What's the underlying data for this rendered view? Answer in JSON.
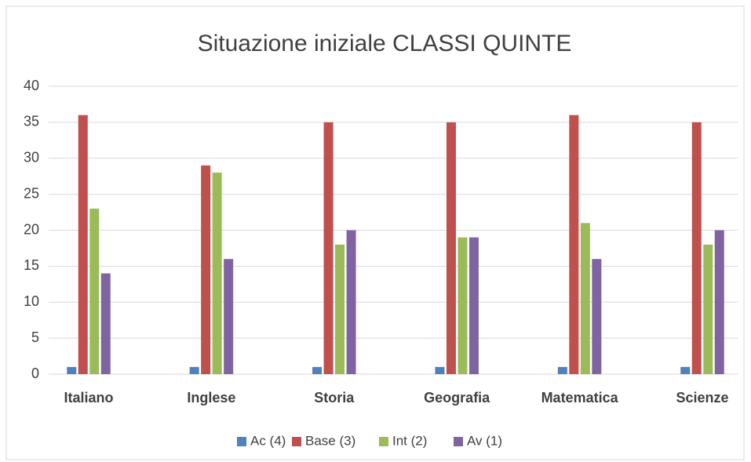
{
  "chart_data": {
    "type": "bar",
    "title": "Situazione iniziale CLASSI QUINTE",
    "categories": [
      "Italiano",
      "Inglese",
      "Storia",
      "Geografia",
      "Matematica",
      "Scienze"
    ],
    "series": [
      {
        "name": "Ac (4)",
        "color": "#4f81bd",
        "values": [
          1,
          1,
          1,
          1,
          1,
          1
        ]
      },
      {
        "name": "Base (3)",
        "color": "#c0504d",
        "values": [
          36,
          29,
          35,
          35,
          36,
          35
        ]
      },
      {
        "name": "Int (2)",
        "color": "#9bbb59",
        "values": [
          23,
          28,
          18,
          19,
          21,
          18
        ]
      },
      {
        "name": "Av (1)",
        "color": "#8064a2",
        "values": [
          14,
          16,
          20,
          19,
          16,
          20
        ]
      }
    ],
    "ylim": [
      0,
      40
    ],
    "yticks": [
      0,
      5,
      10,
      15,
      20,
      25,
      30,
      35,
      40
    ],
    "grid": true,
    "legend": "bottom"
  }
}
